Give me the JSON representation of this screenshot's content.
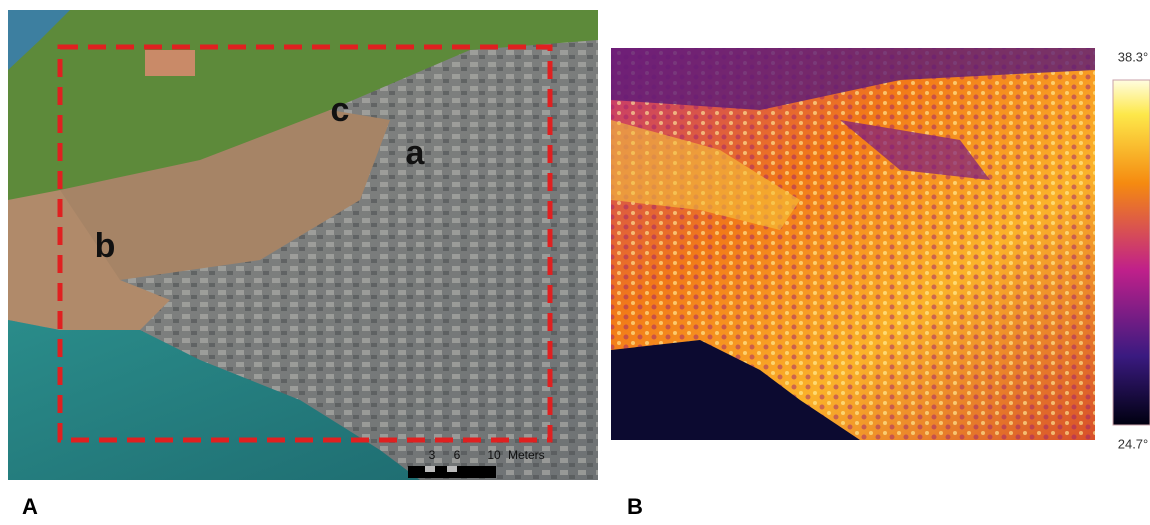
{
  "panels": [
    {
      "label": "A",
      "photo_labels": [
        "c",
        "a",
        "b"
      ],
      "scale_bar": {
        "ticks": [
          "3",
          "6",
          "10"
        ],
        "unit": "Meters"
      }
    },
    {
      "label": "B",
      "colorbar": {
        "max": "38.3°",
        "min": "24.7°"
      }
    }
  ]
}
